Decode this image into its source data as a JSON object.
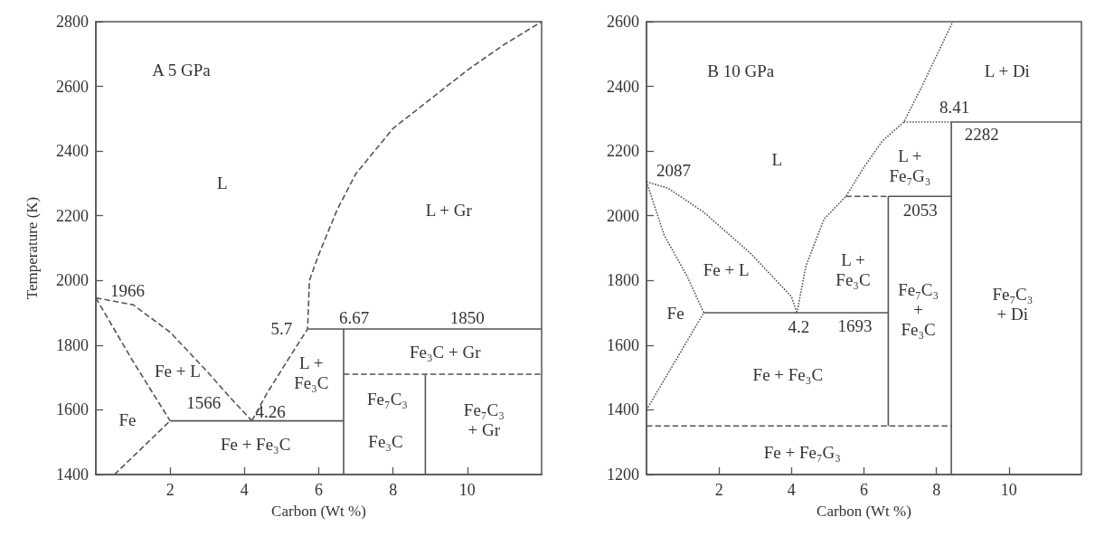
{
  "chart_data": [
    {
      "type": "line",
      "xlabel": "Carbon (Wt %)",
      "ylabel": "Temperature (K)",
      "xlim": [
        0,
        12
      ],
      "xticks": [
        2,
        4,
        6,
        8,
        10
      ],
      "ylim": [
        1400,
        2800
      ],
      "yticks": [
        1400,
        1600,
        1800,
        2000,
        2200,
        2400,
        2600,
        2800
      ],
      "marker": "none",
      "series": [
        {
          "color": "#555555",
          "line_style": "dashed",
          "x": [
            0,
            1,
            2,
            3,
            3.6,
            4.2
          ],
          "values": [
            1946,
            1925,
            1840,
            1718,
            1640,
            1566
          ]
        },
        {
          "color": "#555555",
          "line_style": "dashed",
          "x": [
            0,
            1,
            2
          ],
          "values": [
            1946,
            1750,
            1566
          ]
        },
        {
          "color": "#555555",
          "line_style": "dashed",
          "x": [
            0.5,
            2
          ],
          "values": [
            1400,
            1566
          ]
        },
        {
          "color": "#555555",
          "line_style": "solid",
          "x": [
            2,
            6.67
          ],
          "values": [
            1566,
            1566
          ]
        },
        {
          "color": "#555555",
          "line_style": "dashed",
          "x": [
            4.2,
            4.6,
            5.2,
            5.7,
            5.75,
            6,
            6.5,
            7,
            8,
            9,
            10,
            11,
            12
          ],
          "values": [
            1566,
            1650,
            1760,
            1850,
            2000,
            2080,
            2220,
            2330,
            2470,
            2560,
            2650,
            2730,
            2800
          ]
        },
        {
          "color": "#555555",
          "line_style": "solid",
          "x": [
            5.7,
            12
          ],
          "values": [
            1850,
            1850
          ]
        },
        {
          "color": "#555555",
          "line_style": "solid",
          "x": [
            6.67,
            6.67
          ],
          "values": [
            1400,
            1850
          ]
        },
        {
          "color": "#555555",
          "line_style": "dashed",
          "x": [
            6.67,
            12
          ],
          "values": [
            1710,
            1710
          ]
        },
        {
          "color": "#555555",
          "line_style": "solid",
          "x": [
            8.87,
            8.87
          ],
          "values": [
            1400,
            1710
          ]
        }
      ],
      "annotations": [
        "A 5 GPa",
        "L",
        "L + Gr",
        "1966",
        "Fe + L",
        "Fe",
        "1566",
        "4.26",
        "5.7",
        "6.67",
        "1850",
        "L +\nFe₃C",
        "Fe₃C + Gr",
        "Fe₇C₃",
        "Fe₃C",
        "Fe₇C₃\n+ Gr",
        "Fe + Fe₃C"
      ]
    },
    {
      "type": "line",
      "xlabel": "Carbon (Wt %)",
      "xlim": [
        0,
        12
      ],
      "xticks": [
        2,
        4,
        6,
        8,
        10
      ],
      "ylim": [
        1200,
        2600
      ],
      "yticks": [
        1200,
        1400,
        1600,
        1800,
        2000,
        2200,
        2400,
        2600
      ],
      "marker": "none",
      "series": [
        {
          "color": "#555555",
          "line_style": "dotted",
          "x": [
            0,
            0.6,
            1.58,
            2.85,
            4,
            4.15
          ],
          "values": [
            2105,
            2085,
            2011,
            1886,
            1750,
            1700
          ]
        },
        {
          "color": "#555555",
          "line_style": "dotted",
          "x": [
            0,
            0.49,
            1.13,
            1.58
          ],
          "values": [
            2105,
            1939,
            1811,
            1700
          ]
        },
        {
          "color": "#555555",
          "line_style": "dotted",
          "x": [
            0,
            1.58
          ],
          "values": [
            1400,
            1700
          ]
        },
        {
          "color": "#555555",
          "line_style": "solid",
          "x": [
            1.58,
            6.67
          ],
          "values": [
            1700,
            1700
          ]
        },
        {
          "color": "#555555",
          "line_style": "dotted",
          "x": [
            4.15,
            4.4,
            4.9,
            5.5,
            6,
            6.5,
            7.1,
            7.6,
            8.45
          ],
          "values": [
            1700,
            1845,
            1990,
            2060,
            2150,
            2230,
            2290,
            2400,
            2600
          ]
        },
        {
          "color": "#555555",
          "line_style": "dotted",
          "x": [
            7.1,
            8.41
          ],
          "values": [
            2290,
            2290
          ]
        },
        {
          "color": "#555555",
          "line_style": "dashed",
          "x": [
            5.5,
            6.67
          ],
          "values": [
            2060,
            2060
          ]
        },
        {
          "color": "#555555",
          "line_style": "solid",
          "x": [
            6.67,
            6.67
          ],
          "values": [
            1350,
            2060
          ]
        },
        {
          "color": "#555555",
          "line_style": "solid",
          "x": [
            6.67,
            8.41
          ],
          "values": [
            2060,
            2060
          ]
        },
        {
          "color": "#555555",
          "line_style": "solid",
          "x": [
            8.41,
            8.41
          ],
          "values": [
            1200,
            2290
          ]
        },
        {
          "color": "#555555",
          "line_style": "solid",
          "x": [
            8.41,
            12
          ],
          "values": [
            2290,
            2290
          ]
        },
        {
          "color": "#555555",
          "line_style": "dashed",
          "x": [
            0,
            8.41
          ],
          "values": [
            1350,
            1350
          ]
        }
      ],
      "annotations": [
        "B 10 GPa",
        "L",
        "2087",
        "Fe + L",
        "Fe",
        "4.2",
        "Fe + Fe₃C",
        "Fe + Fe₇G₃",
        "1693",
        "L +\nFe₃C",
        "Fe₇C₃\n+\nFe₃C",
        "2053",
        "L +\nFe₇G₃",
        "8.41",
        "2282",
        "L + Di",
        "Fe₇C₃\n+ Di"
      ]
    }
  ]
}
